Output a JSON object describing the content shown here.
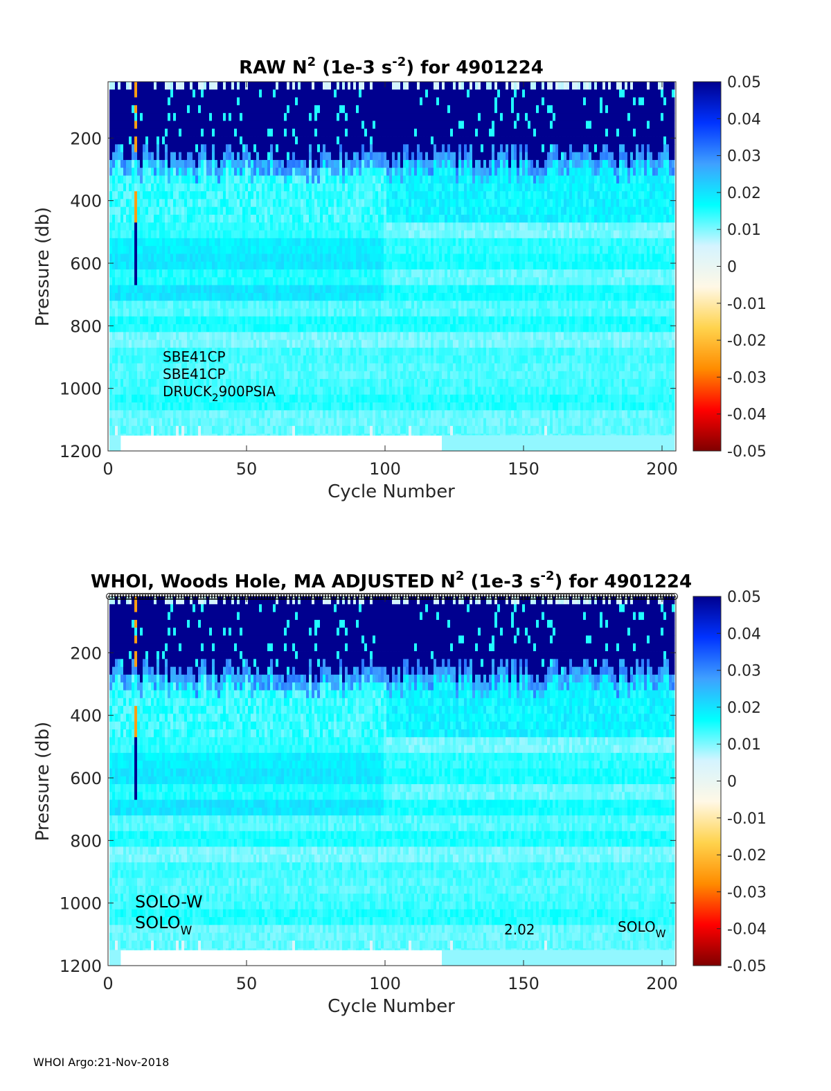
{
  "footer": "WHOI Argo:21-Nov-2018",
  "colorbar": {
    "ticks": [
      0.05,
      0.04,
      0.03,
      0.02,
      0.01,
      0,
      -0.01,
      -0.02,
      -0.03,
      -0.04,
      -0.05
    ],
    "tick_labels": [
      "0.05",
      "0.04",
      "0.03",
      "0.02",
      "0.01",
      "0",
      "-0.01",
      "-0.02",
      "-0.03",
      "-0.04",
      "-0.05"
    ],
    "colors": [
      "#7f0000",
      "#ff0000",
      "#ff8c00",
      "#ffd34d",
      "#fff8e6",
      "#d4f4ff",
      "#00ffff",
      "#3fa0ff",
      "#0033ff",
      "#00008f"
    ]
  },
  "chart_data": [
    {
      "type": "heatmap",
      "title": "RAW N² (1e-3 s⁻²) for 4901224",
      "title_parts": {
        "a": "RAW N",
        "sup1": "2",
        "b": " (1e-3 s",
        "sup2": "-2",
        "c": ") for 4901224"
      },
      "xlabel": "Cycle Number",
      "ylabel": "Pressure (db)",
      "xlim": [
        0,
        205
      ],
      "ylim": [
        1200,
        20
      ],
      "xticks": [
        0,
        50,
        100,
        150,
        200
      ],
      "xtick_labels": [
        "0",
        "50",
        "100",
        "150",
        "200"
      ],
      "yticks": [
        200,
        400,
        600,
        800,
        1000,
        1200
      ],
      "ytick_labels": [
        "200",
        "400",
        "600",
        "800",
        "1000",
        "1200"
      ],
      "clim": [
        -0.05,
        0.05
      ],
      "annotations": {
        "line1": "SBE41CP",
        "line2": "SBE41CP",
        "line3_main": "DRUCK",
        "line3_sub": "2",
        "line3_rest": "900PSIA"
      },
      "field": {
        "surface_value": 0.05,
        "surface_bottom_db": 240,
        "thermocline_value": 0.01,
        "deep_value": 0.013,
        "last_valid_db": 1150,
        "anomaly_cycle": 10
      }
    },
    {
      "type": "heatmap",
      "title": "WHOI, Woods Hole, MA  ADJUSTED N² (1e-3 s⁻²) for 4901224",
      "title_parts": {
        "a": "WHOI, Woods Hole, MA  ADJUSTED N",
        "sup1": "2",
        "b": " (1e-3 s",
        "sup2": "-2",
        "c": ") for 4901224"
      },
      "xlabel": "Cycle Number",
      "ylabel": "Pressure (db)",
      "xlim": [
        0,
        205
      ],
      "ylim": [
        1200,
        20
      ],
      "xticks": [
        0,
        50,
        100,
        150,
        200
      ],
      "xtick_labels": [
        "0",
        "50",
        "100",
        "150",
        "200"
      ],
      "yticks": [
        200,
        400,
        600,
        800,
        1000,
        1200
      ],
      "ytick_labels": [
        "200",
        "400",
        "600",
        "800",
        "1000",
        "1200"
      ],
      "clim": [
        -0.05,
        0.05
      ],
      "markers": {
        "symbol": "circle",
        "row": "top",
        "count": 205
      },
      "annotations": {
        "line1": "SOLO-W",
        "line2_main": "SOLO",
        "line2_sub": "W",
        "version": "2.02",
        "right_main": "SOLO",
        "right_sub": "W"
      },
      "field": {
        "surface_value": 0.05,
        "surface_bottom_db": 240,
        "thermocline_value": 0.01,
        "deep_value": 0.013,
        "last_valid_db": 1150,
        "anomaly_cycle": 10
      }
    }
  ]
}
